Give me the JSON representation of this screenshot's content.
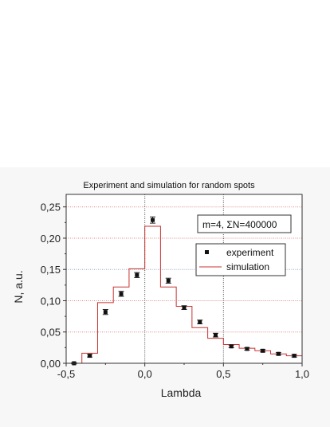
{
  "chart_data": {
    "type": "scatter",
    "title": "Experiment and simulation for random spots",
    "xlabel": "Lambda",
    "ylabel": "N, a.u.",
    "xlim": [
      -0.5,
      1.0
    ],
    "ylim": [
      0.0,
      0.27
    ],
    "x_ticks": [
      -0.5,
      0.0,
      0.5,
      1.0
    ],
    "x_tick_labels": [
      "-0,5",
      "0,0",
      "0,5",
      "1,0"
    ],
    "y_ticks": [
      0.0,
      0.05,
      0.1,
      0.15,
      0.2,
      0.25
    ],
    "y_tick_labels": [
      "0,00",
      "0,05",
      "0,10",
      "0,15",
      "0,20",
      "0,25"
    ],
    "grid": true,
    "legend_position": "right",
    "annotation": "m=4,  ΣN=400000",
    "series": [
      {
        "name": "experiment",
        "type": "scatter",
        "color": "#111111",
        "x": [
          -0.45,
          -0.35,
          -0.25,
          -0.15,
          -0.05,
          0.05,
          0.15,
          0.25,
          0.35,
          0.45,
          0.55,
          0.65,
          0.75,
          0.85,
          0.95
        ],
        "y": [
          0.0,
          0.012,
          0.082,
          0.111,
          0.141,
          0.229,
          0.132,
          0.089,
          0.066,
          0.045,
          0.027,
          0.023,
          0.02,
          0.015,
          0.012
        ],
        "err": [
          0.001,
          0.002,
          0.004,
          0.004,
          0.004,
          0.005,
          0.004,
          0.003,
          0.003,
          0.003,
          0.002,
          0.002,
          0.002,
          0.002,
          0.002
        ]
      },
      {
        "name": "simulation",
        "type": "step",
        "color": "#c83232",
        "edges": [
          -0.4,
          -0.3,
          -0.2,
          -0.1,
          0.0,
          0.1,
          0.2,
          0.3,
          0.4,
          0.5,
          0.6,
          0.7,
          0.8,
          0.9,
          1.0
        ],
        "values": [
          0.016,
          0.097,
          0.122,
          0.151,
          0.219,
          0.122,
          0.091,
          0.057,
          0.04,
          0.03,
          0.024,
          0.02,
          0.015,
          0.012
        ]
      }
    ]
  }
}
